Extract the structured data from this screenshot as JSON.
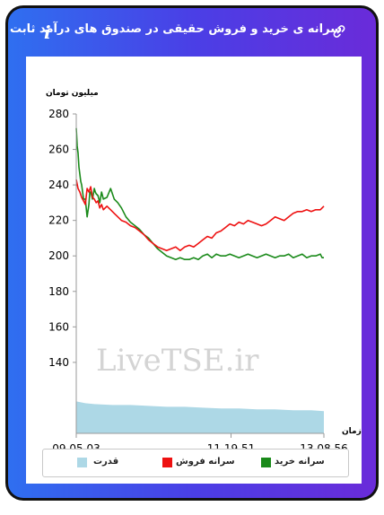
{
  "header": {
    "title": "سرانه ی خرید و فروش حقیقی در صندوق های درآمد ثابت",
    "info_glyph": "i",
    "link_icon": "link-icon",
    "info_icon": "info-icon"
  },
  "watermark": "LiveTSE.ir",
  "colors": {
    "buy": "#1a8a1a",
    "sell": "#ee1111",
    "power": "#add8e6",
    "card_gradient_start": "#2f6ff0",
    "card_gradient_end": "#6a2bd9"
  },
  "chart_data": {
    "type": "line",
    "ylabel": "میلیون تومان",
    "xlabel": "زمان",
    "ylim": [
      100,
      280
    ],
    "yticks": [
      140,
      160,
      180,
      200,
      220,
      240,
      260,
      280
    ],
    "xlim": [
      "09.05.03",
      "13.08.56"
    ],
    "xticks": [
      "09.05.03",
      "11.19.51",
      "13.08.56"
    ],
    "legend_position": "bottom",
    "series": [
      {
        "name": "سرانه خرید",
        "color": "#1a8a1a",
        "x": [
          0,
          1,
          2,
          3,
          4,
          5,
          6,
          7,
          8,
          10,
          11,
          12,
          14,
          15,
          16,
          18,
          20,
          21,
          22,
          24,
          26,
          28,
          30,
          34,
          38,
          42,
          46,
          50,
          55,
          60,
          65,
          70,
          75,
          80,
          85,
          90,
          95,
          100,
          105,
          110,
          115,
          120,
          125,
          130,
          135,
          140,
          145,
          150,
          155,
          160,
          165,
          170,
          175,
          180,
          185,
          190,
          195,
          200,
          205,
          210,
          215,
          220,
          225,
          230,
          235,
          240,
          245,
          250,
          255,
          260,
          265,
          270,
          272,
          274
        ],
        "y": [
          272,
          262,
          258,
          250,
          246,
          242,
          240,
          236,
          232,
          232,
          227,
          222,
          229,
          236,
          236,
          232,
          238,
          236,
          235,
          234,
          230,
          236,
          232,
          233,
          238,
          232,
          230,
          227,
          222,
          219,
          217,
          215,
          212,
          210,
          207,
          204,
          202,
          200,
          199,
          198,
          199,
          198,
          198,
          199,
          198,
          200,
          201,
          199,
          201,
          200,
          200,
          201,
          200,
          199,
          200,
          201,
          200,
          199,
          200,
          201,
          200,
          199,
          200,
          200,
          201,
          199,
          200,
          201,
          199,
          200,
          200,
          201,
          199,
          199
        ]
      },
      {
        "name": "سرانه فروش",
        "color": "#ee1111",
        "x": [
          0,
          2,
          4,
          6,
          8,
          10,
          12,
          14,
          16,
          18,
          20,
          22,
          24,
          26,
          28,
          30,
          34,
          38,
          42,
          46,
          50,
          55,
          60,
          65,
          70,
          75,
          80,
          85,
          90,
          95,
          100,
          105,
          110,
          115,
          120,
          125,
          130,
          135,
          140,
          145,
          150,
          155,
          160,
          165,
          170,
          175,
          180,
          185,
          190,
          195,
          200,
          205,
          210,
          215,
          220,
          225,
          230,
          235,
          240,
          245,
          250,
          255,
          260,
          265,
          270,
          272,
          274
        ],
        "y": [
          243,
          238,
          236,
          233,
          231,
          229,
          238,
          236,
          239,
          233,
          232,
          230,
          231,
          227,
          229,
          226,
          228,
          226,
          224,
          222,
          220,
          219,
          217,
          216,
          214,
          212,
          209,
          207,
          205,
          204,
          203,
          204,
          205,
          203,
          205,
          206,
          205,
          207,
          209,
          211,
          210,
          213,
          214,
          216,
          218,
          217,
          219,
          218,
          220,
          219,
          218,
          217,
          218,
          220,
          222,
          221,
          220,
          222,
          224,
          225,
          225,
          226,
          225,
          226,
          226,
          227,
          228
        ]
      },
      {
        "name": "قدرت",
        "color": "#add8e6",
        "type": "area",
        "x": [
          0,
          10,
          20,
          40,
          60,
          80,
          100,
          120,
          140,
          160,
          180,
          200,
          220,
          240,
          260,
          274
        ],
        "y": [
          118,
          117,
          116.5,
          116,
          116,
          115.5,
          115,
          115,
          114.5,
          114,
          114,
          113.5,
          113.5,
          113,
          113,
          112.5
        ]
      }
    ]
  }
}
